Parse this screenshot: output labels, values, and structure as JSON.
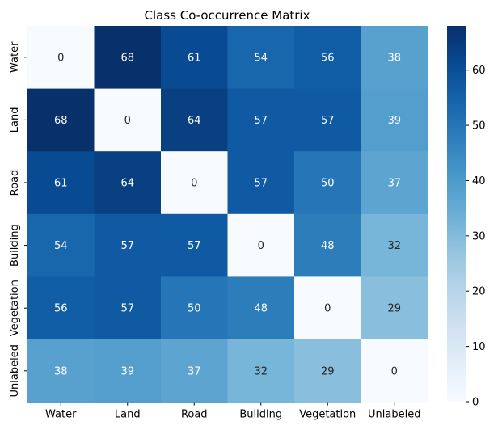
{
  "chart_data": {
    "type": "heatmap",
    "title": "Class Co-occurrence Matrix",
    "xlabel": "",
    "ylabel": "",
    "x_categories": [
      "Water",
      "Land",
      "Road",
      "Building",
      "Vegetation",
      "Unlabeled"
    ],
    "y_categories": [
      "Water",
      "Land",
      "Road",
      "Building",
      "Vegetation",
      "Unlabeled"
    ],
    "values": [
      [
        0,
        68,
        61,
        54,
        56,
        38
      ],
      [
        68,
        0,
        64,
        57,
        57,
        39
      ],
      [
        61,
        64,
        0,
        57,
        50,
        37
      ],
      [
        54,
        57,
        57,
        0,
        48,
        32
      ],
      [
        56,
        57,
        50,
        48,
        0,
        29
      ],
      [
        38,
        39,
        37,
        32,
        29,
        0
      ]
    ],
    "annotations": true,
    "colormap": "Blues",
    "vmin": 0,
    "vmax": 68,
    "colorbar": {
      "ticks": [
        0,
        10,
        20,
        30,
        40,
        50,
        60
      ],
      "tick_labels": [
        "0",
        "10",
        "20",
        "30",
        "40",
        "50",
        "60"
      ]
    },
    "colors": {
      "low": "#f7fbff",
      "high": "#08306b",
      "annotation_light": "#ffffff",
      "annotation_dark": "#262626"
    },
    "grid": false
  }
}
